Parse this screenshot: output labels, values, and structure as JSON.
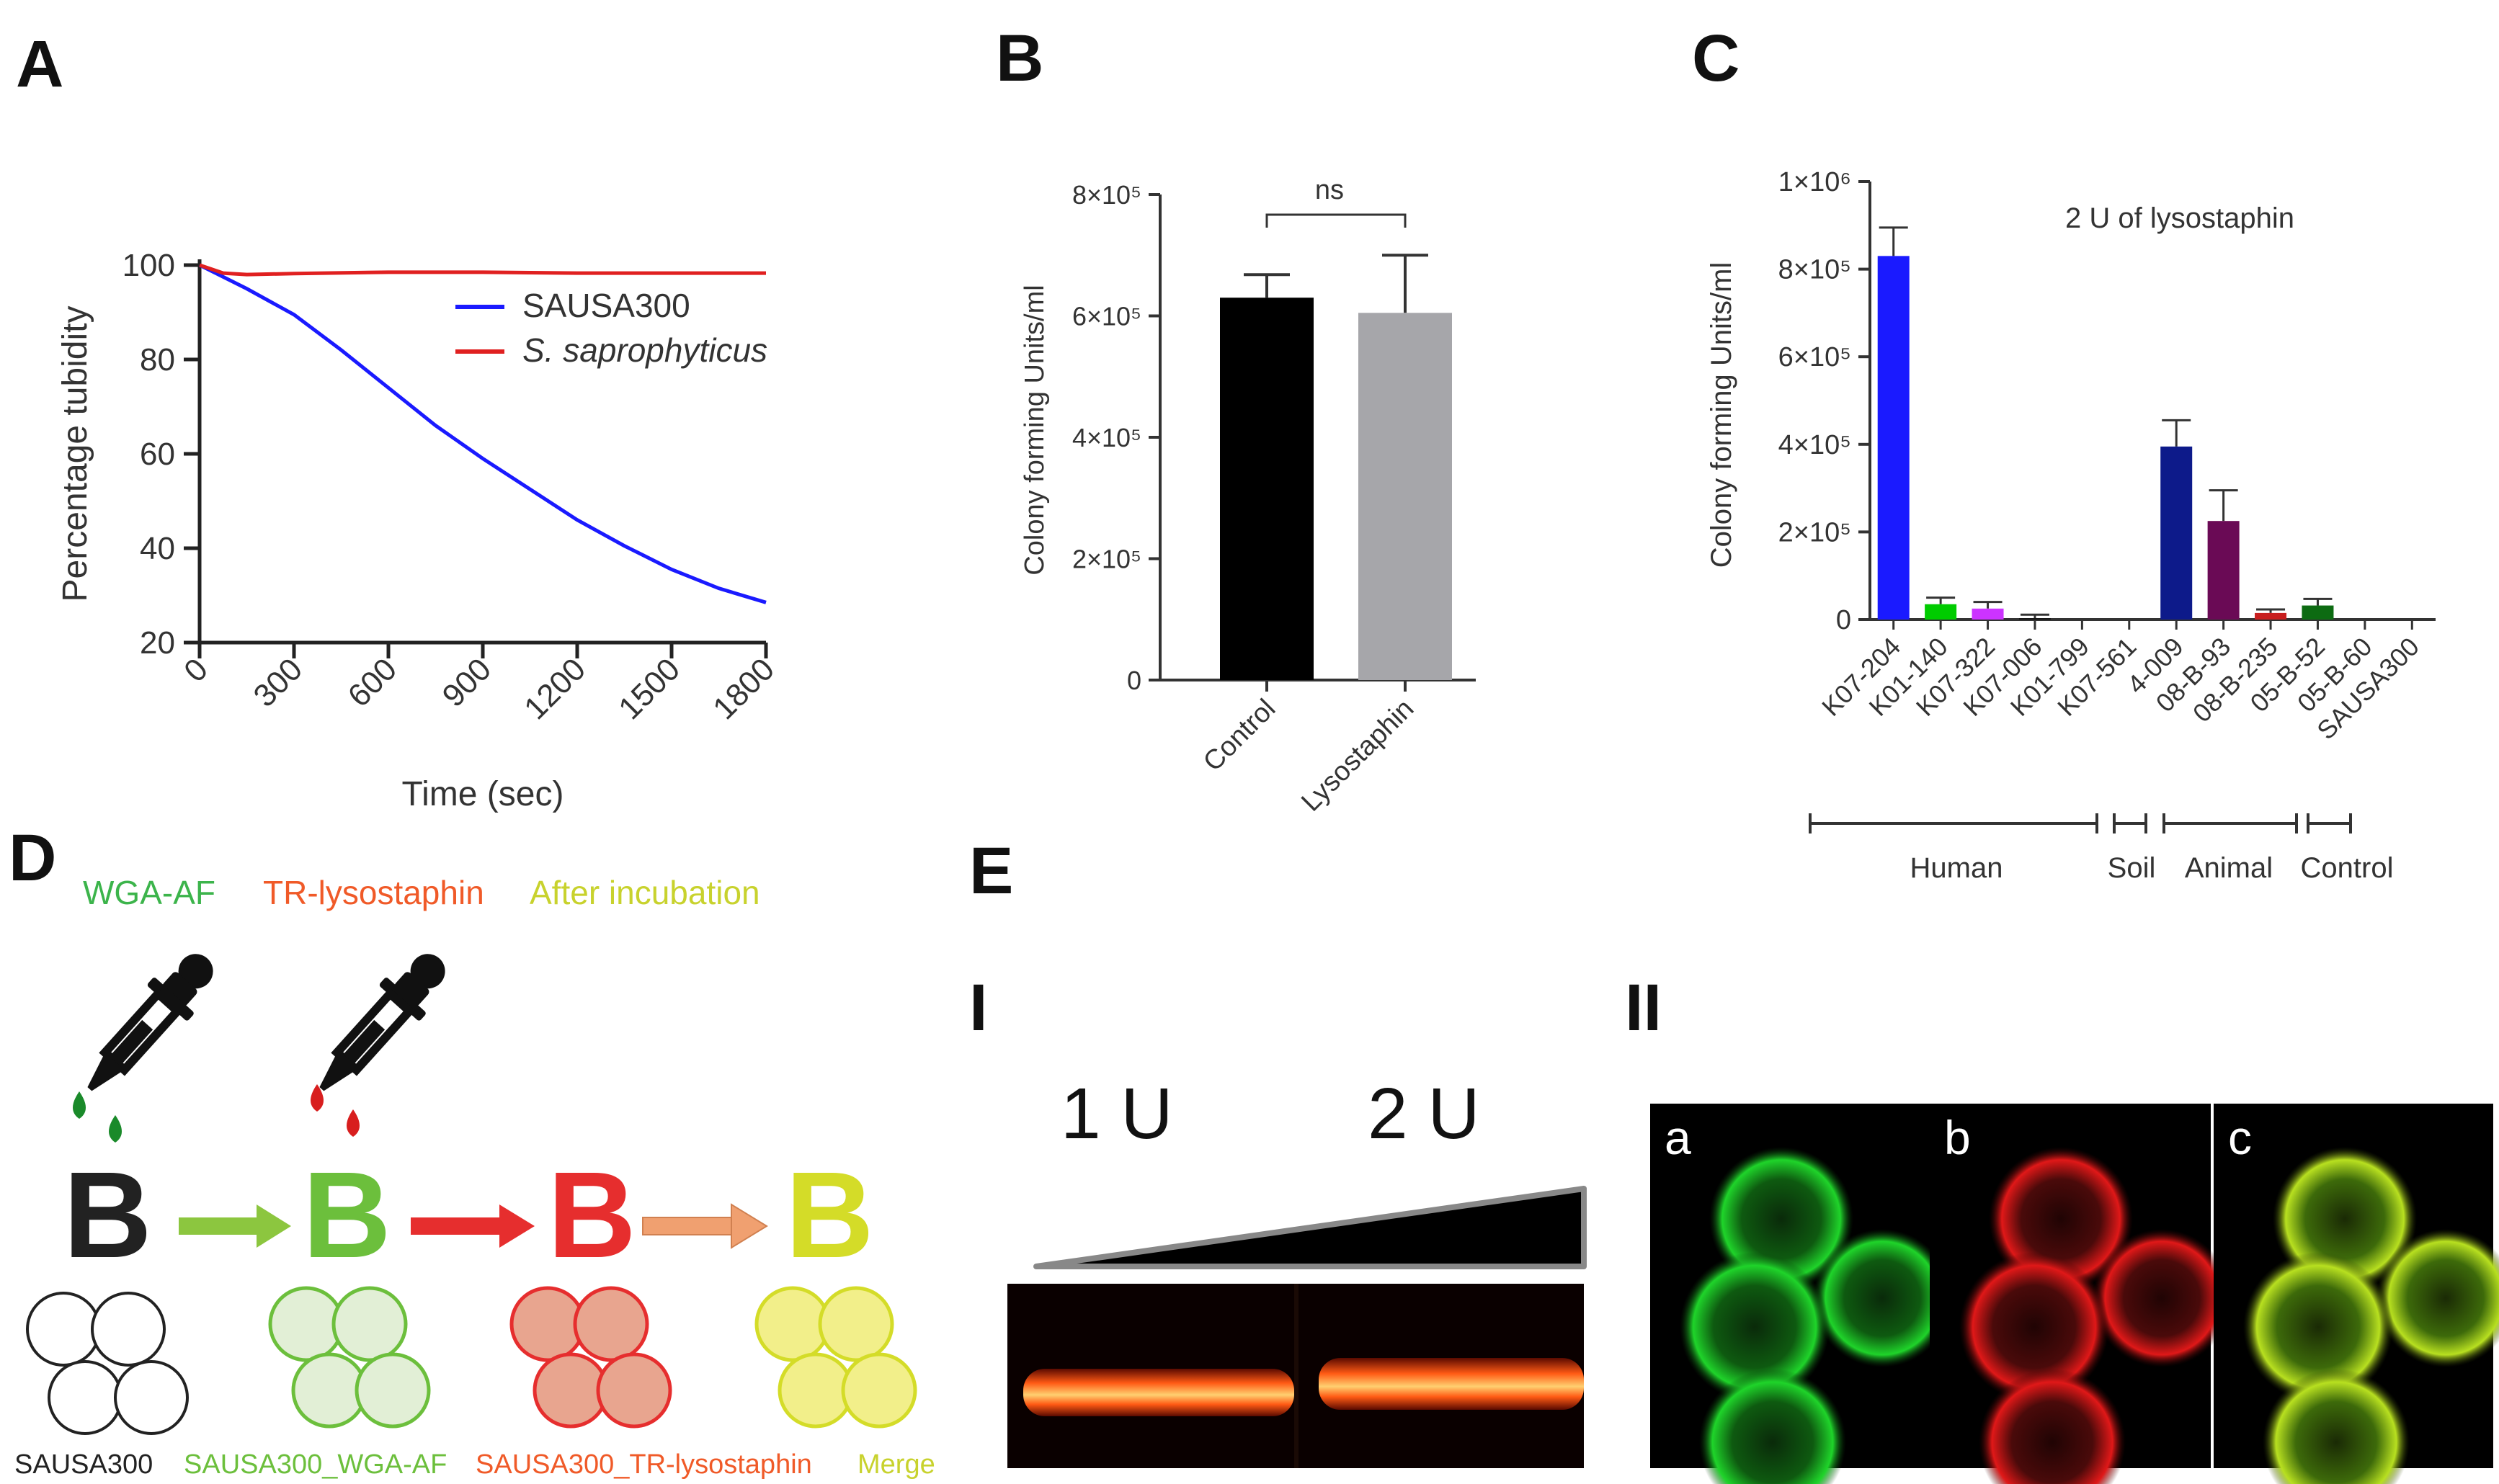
{
  "panels": {
    "A": "A",
    "B": "B",
    "C": "C",
    "D": "D",
    "E": "E",
    "E_I": "I",
    "E_II": "II"
  },
  "chart_data": [
    {
      "type": "line",
      "panel": "A",
      "xlabel": "Time (sec)",
      "ylabel": "Percentage tubidity",
      "xlim": [
        0,
        1800
      ],
      "ylim": [
        20,
        100
      ],
      "x_ticks": [
        "0",
        "300",
        "600",
        "900",
        "1200",
        "1500",
        "1800"
      ],
      "y_ticks": [
        "20",
        "40",
        "60",
        "80",
        "100"
      ],
      "legend_position": "top-right",
      "series": [
        {
          "name": "SAUSA300",
          "color": "#1a1aff",
          "x": [
            0,
            150,
            300,
            450,
            600,
            750,
            900,
            1050,
            1200,
            1350,
            1500,
            1650,
            1800
          ],
          "y": [
            100,
            95,
            89.5,
            82,
            74,
            66,
            59,
            52.5,
            46,
            40.5,
            35.5,
            31.5,
            28.5
          ]
        },
        {
          "name": "S. saprophyticus",
          "color": "#e02020",
          "x": [
            0,
            75,
            150,
            300,
            600,
            900,
            1200,
            1500,
            1800
          ],
          "y": [
            100,
            98.3,
            98,
            98.2,
            98.5,
            98.5,
            98.3,
            98.3,
            98.3
          ]
        }
      ]
    },
    {
      "type": "bar",
      "panel": "B",
      "ylabel": "Colony forming Units/ml",
      "ylim": [
        0,
        800000
      ],
      "y_ticks": [
        "0",
        "2×10⁵",
        "4×10⁵",
        "6×10⁵",
        "8×10⁵"
      ],
      "categories": [
        "Control",
        "Lysostaphin"
      ],
      "values": [
        630000,
        605000
      ],
      "errors": [
        38000,
        95000
      ],
      "colors": [
        "#000000",
        "#a6a6aa"
      ],
      "annotation": "ns"
    },
    {
      "type": "bar",
      "panel": "C",
      "title": "2 U of lysostaphin",
      "ylabel": "Colony forming Units/ml",
      "ylim": [
        0,
        1000000
      ],
      "y_ticks": [
        "0",
        "2×10⁵",
        "4×10⁵",
        "6×10⁵",
        "8×10⁵",
        "1×10⁶"
      ],
      "categories": [
        "K07-204",
        "K01-140",
        "K07-322",
        "K07-006",
        "K01-799",
        "K07-561",
        "4-009",
        "08-B-93",
        "08-B-235",
        "05-B-52",
        "05-B-60",
        "SAUSA300"
      ],
      "values": [
        830000,
        35000,
        25000,
        3000,
        0,
        0,
        395000,
        225000,
        15000,
        32000,
        0,
        0
      ],
      "errors": [
        65000,
        15000,
        15000,
        8000,
        0,
        0,
        60000,
        70000,
        8000,
        15000,
        0,
        0
      ],
      "colors": [
        "#1a1aff",
        "#00cc00",
        "#cc33ff",
        "#111111",
        "#111111",
        "#111111",
        "#0d1a8a",
        "#6a0a55",
        "#c81e1e",
        "#0d6b12",
        "#111111",
        "#111111"
      ],
      "groups": [
        {
          "label": "Human",
          "from": 0,
          "to": 5
        },
        {
          "label": "Soil",
          "from": 5,
          "to": 6
        },
        {
          "label": "Animal",
          "from": 6,
          "to": 9
        },
        {
          "label": "Control",
          "from": 9,
          "to": 11
        }
      ]
    }
  ],
  "panel_D": {
    "reagents": [
      "WGA-AF",
      "TR-lysostaphin",
      "After incubation"
    ],
    "letter": "B",
    "captions": [
      "SAUSA300",
      "SAUSA300_WGA-AF",
      "SAUSA300_TR-lysostaphin",
      "Merge"
    ],
    "colors": {
      "green": "#6cbf3c",
      "green_text": "#3cb44b",
      "red": "#e62e2e",
      "red_text": "#f05a28",
      "orange": "#f0a070",
      "yellow": "#d4dc28",
      "yellow_text": "#c8d22d"
    }
  },
  "panel_E": {
    "gel_labels": [
      "1 U",
      "2 U"
    ],
    "micro_labels": [
      "a",
      "b",
      "c"
    ]
  }
}
